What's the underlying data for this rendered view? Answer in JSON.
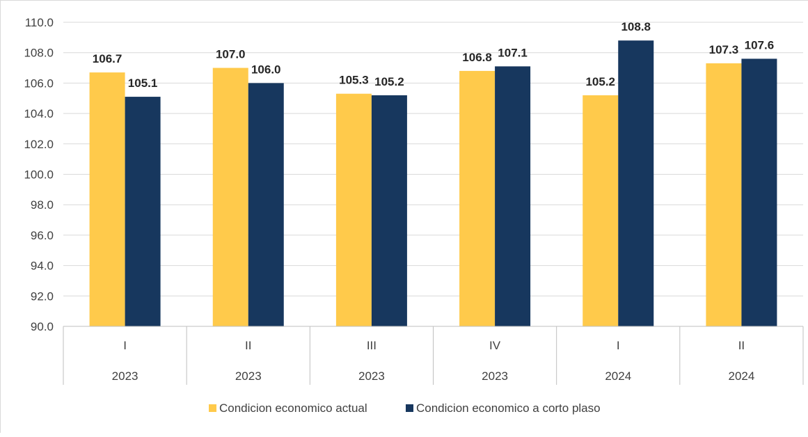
{
  "chart_data": {
    "type": "bar",
    "categories": [
      {
        "quarter": "I",
        "year": "2023"
      },
      {
        "quarter": "II",
        "year": "2023"
      },
      {
        "quarter": "III",
        "year": "2023"
      },
      {
        "quarter": "IV",
        "year": "2023"
      },
      {
        "quarter": "I",
        "year": "2024"
      },
      {
        "quarter": "II",
        "year": "2024"
      }
    ],
    "series": [
      {
        "name": "Condicion economico actual",
        "color": "#FFCA4B",
        "values": [
          106.7,
          107.0,
          105.3,
          106.8,
          105.2,
          107.3
        ],
        "labels": [
          "106.7",
          "107.0",
          "105.3",
          "106.8",
          "105.2",
          "107.3"
        ]
      },
      {
        "name": "Condicion economico a corto plaso",
        "color": "#17375E",
        "values": [
          105.1,
          106.0,
          105.2,
          107.1,
          108.8,
          107.6
        ],
        "labels": [
          "105.1",
          "106.0",
          "105.2",
          "107.1",
          "108.8",
          "107.6"
        ]
      }
    ],
    "ylim": [
      90.0,
      110.0
    ],
    "yticks": [
      "90.0",
      "92.0",
      "94.0",
      "96.0",
      "98.0",
      "100.0",
      "102.0",
      "104.0",
      "106.0",
      "108.0",
      "110.0"
    ],
    "title": "",
    "xlabel": "",
    "ylabel": "",
    "grid": true,
    "legend_position": "bottom"
  }
}
